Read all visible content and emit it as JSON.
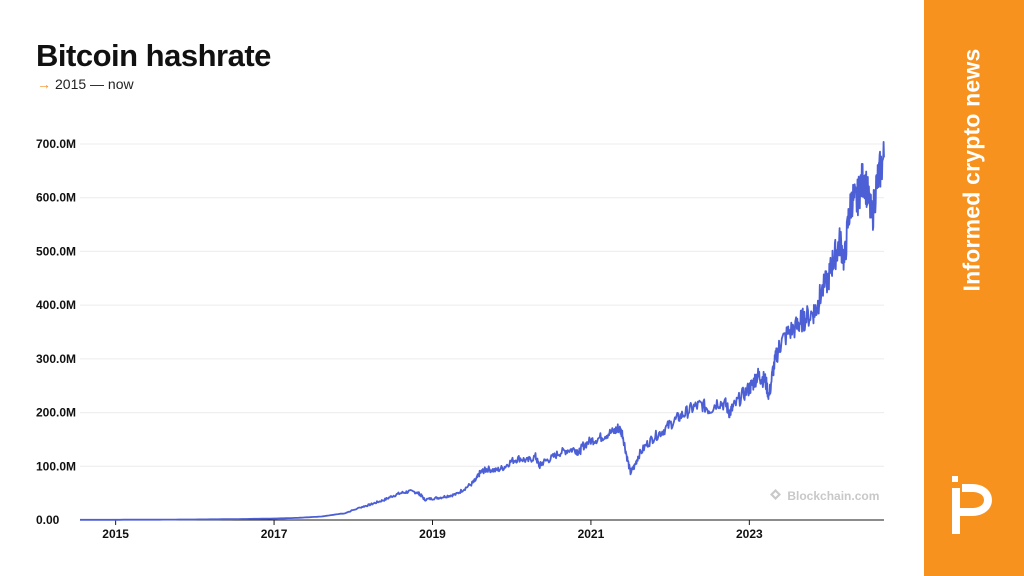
{
  "title": "Bitcoin hashrate",
  "subtitle": {
    "arrow": "→",
    "text": "2015 — now"
  },
  "sidebar": {
    "tagline": "Informed crypto news",
    "background": "#f7921e",
    "logo_icon": "publisher-logo-icon"
  },
  "watermark": {
    "icon": "blockchain-logo-icon",
    "text": "Blockchain.com"
  },
  "colors": {
    "line": "#4c5fd5",
    "accent": "#f39423"
  },
  "chart_data": {
    "type": "line",
    "title": "Bitcoin hashrate",
    "subtitle": "2015 — now",
    "xlabel": "",
    "ylabel": "",
    "grid": true,
    "legend": "none",
    "xlim": [
      2014.55,
      2024.7
    ],
    "ylim": [
      0,
      700000000
    ],
    "yticks": [
      {
        "value": 0,
        "label": "0.00"
      },
      {
        "value": 100000000,
        "label": "100.0M"
      },
      {
        "value": 200000000,
        "label": "200.0M"
      },
      {
        "value": 300000000,
        "label": "300.0M"
      },
      {
        "value": 400000000,
        "label": "400.0M"
      },
      {
        "value": 500000000,
        "label": "500.0M"
      },
      {
        "value": 600000000,
        "label": "600.0M"
      },
      {
        "value": 700000000,
        "label": "700.0M"
      }
    ],
    "xticks": [
      {
        "value": 2015,
        "label": "2015"
      },
      {
        "value": 2017,
        "label": "2017"
      },
      {
        "value": 2019,
        "label": "2019"
      },
      {
        "value": 2021,
        "label": "2021"
      },
      {
        "value": 2023,
        "label": "2023"
      }
    ],
    "series": [
      {
        "x": [
          2014.55,
          2015.0,
          2015.5,
          2016.0,
          2016.5,
          2017.0,
          2017.3,
          2017.6,
          2017.9,
          2018.1,
          2018.2,
          2018.3,
          2018.4,
          2018.5,
          2018.6,
          2018.7,
          2018.8,
          2018.85,
          2018.9,
          2019.0,
          2019.1,
          2019.2,
          2019.3,
          2019.4,
          2019.5,
          2019.55,
          2019.6,
          2019.65,
          2019.7,
          2019.8,
          2019.9,
          2020.0,
          2020.1,
          2020.2,
          2020.3,
          2020.35,
          2020.4,
          2020.5,
          2020.6,
          2020.7,
          2020.8,
          2020.85,
          2020.9,
          2021.0,
          2021.1,
          2021.2,
          2021.3,
          2021.35,
          2021.4,
          2021.45,
          2021.5,
          2021.55,
          2021.6,
          2021.7,
          2021.8,
          2021.9,
          2022.0,
          2022.1,
          2022.2,
          2022.3,
          2022.4,
          2022.5,
          2022.6,
          2022.7,
          2022.75,
          2022.8,
          2022.9,
          2023.0,
          2023.05,
          2023.1,
          2023.15,
          2023.2,
          2023.25,
          2023.3,
          2023.35,
          2023.4,
          2023.5,
          2023.6,
          2023.65,
          2023.7,
          2023.8,
          2023.85,
          2023.9,
          2024.0,
          2024.05,
          2024.1,
          2024.15,
          2024.2,
          2024.25,
          2024.3,
          2024.35,
          2024.4,
          2024.45,
          2024.5,
          2024.55,
          2024.6,
          2024.65,
          2024.7
        ],
        "y": [
          400000,
          450000,
          600000,
          1000000,
          1600000,
          2700000,
          4000000,
          6500000,
          13000000,
          24000000,
          28000000,
          33000000,
          38000000,
          45000000,
          50000000,
          53000000,
          52000000,
          47000000,
          38000000,
          40000000,
          42000000,
          45000000,
          48000000,
          58000000,
          68000000,
          75000000,
          88000000,
          92000000,
          95000000,
          92000000,
          98000000,
          110000000,
          115000000,
          110000000,
          118000000,
          100000000,
          108000000,
          115000000,
          125000000,
          130000000,
          132000000,
          125000000,
          138000000,
          148000000,
          152000000,
          160000000,
          165000000,
          172000000,
          160000000,
          120000000,
          88000000,
          100000000,
          120000000,
          140000000,
          155000000,
          165000000,
          178000000,
          190000000,
          200000000,
          210000000,
          215000000,
          205000000,
          220000000,
          215000000,
          200000000,
          210000000,
          230000000,
          245000000,
          255000000,
          270000000,
          265000000,
          260000000,
          230000000,
          280000000,
          310000000,
          330000000,
          350000000,
          360000000,
          370000000,
          375000000,
          385000000,
          395000000,
          420000000,
          450000000,
          480000000,
          500000000,
          520000000,
          480000000,
          560000000,
          600000000,
          590000000,
          620000000,
          640000000,
          600000000,
          560000000,
          620000000,
          650000000,
          675000000
        ]
      }
    ]
  }
}
